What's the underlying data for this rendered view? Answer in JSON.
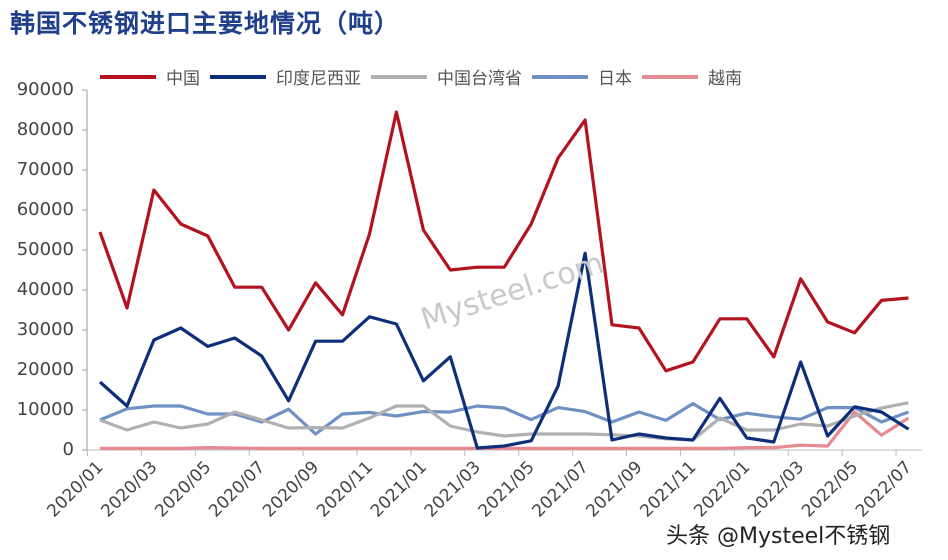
{
  "header": {
    "title": "韩国不锈钢进口主要地情况（吨）"
  },
  "watermark": {
    "text": "头条 @Mysteel不锈钢",
    "logo": "Mysteel.com"
  },
  "chart_data": {
    "type": "line",
    "title": "韩国不锈钢进口主要地情况（吨）",
    "xlabel": "",
    "ylabel": "",
    "ylim": [
      0,
      90000
    ],
    "yticks": [
      0,
      10000,
      20000,
      30000,
      40000,
      50000,
      60000,
      70000,
      80000,
      90000
    ],
    "grid": false,
    "legend_position": "top",
    "x": [
      "2020/01",
      "2020/02",
      "2020/03",
      "2020/04",
      "2020/05",
      "2020/06",
      "2020/07",
      "2020/08",
      "2020/09",
      "2020/10",
      "2020/11",
      "2020/12",
      "2021/01",
      "2021/02",
      "2021/03",
      "2021/04",
      "2021/05",
      "2021/06",
      "2021/07",
      "2021/08",
      "2021/09",
      "2021/10",
      "2021/11",
      "2021/12",
      "2022/01",
      "2022/02",
      "2022/03",
      "2022/04",
      "2022/05",
      "2022/06",
      "2022/07"
    ],
    "x_tick_labels": [
      "2020/01",
      "2020/03",
      "2020/05",
      "2020/07",
      "2020/09",
      "2020/11",
      "2021/01",
      "2021/03",
      "2021/05",
      "2021/07",
      "2021/09",
      "2021/11",
      "2022/01",
      "2022/03",
      "2022/05",
      "2022/07"
    ],
    "series": [
      {
        "name": "中国",
        "color": "#b3121f",
        "values": [
          54500,
          35500,
          65000,
          56500,
          53500,
          40700,
          40700,
          30000,
          41800,
          33800,
          54000,
          84500,
          55000,
          45000,
          45700,
          45700,
          56500,
          73000,
          82500,
          31300,
          30500,
          19800,
          22000,
          32800,
          32800,
          23300,
          42800,
          32000,
          29300,
          37400,
          38000
        ]
      },
      {
        "name": "印度尼西亚",
        "color": "#0d2f7a",
        "values": [
          17000,
          11000,
          27500,
          30500,
          25900,
          28000,
          23500,
          12300,
          27200,
          27200,
          33300,
          31500,
          17300,
          23300,
          500,
          1000,
          2300,
          16000,
          49200,
          2500,
          4000,
          3000,
          2500,
          12900,
          3000,
          2000,
          22000,
          3500,
          10800,
          9500,
          5200
        ]
      },
      {
        "name": "中国台湾省",
        "color": "#b0b0b0",
        "values": [
          7500,
          5000,
          7000,
          5500,
          6500,
          9500,
          7500,
          5500,
          5600,
          5500,
          8000,
          11000,
          11000,
          6000,
          4500,
          3500,
          4000,
          4000,
          4000,
          3800,
          3500,
          2800,
          2500,
          8000,
          5000,
          5000,
          6500,
          6000,
          8500,
          10500,
          11800
        ]
      },
      {
        "name": "日本",
        "color": "#6e90c2",
        "values": [
          7500,
          10300,
          11000,
          11000,
          9000,
          9000,
          7000,
          10200,
          4000,
          9000,
          9400,
          8500,
          9600,
          9500,
          11000,
          10500,
          7600,
          10600,
          9600,
          7000,
          9500,
          7400,
          11600,
          7600,
          9200,
          8300,
          7700,
          10600,
          10600,
          7000,
          9500
        ]
      },
      {
        "name": "越南",
        "color": "#e58a90",
        "values": [
          400,
          400,
          400,
          400,
          600,
          500,
          400,
          400,
          400,
          400,
          400,
          400,
          400,
          400,
          400,
          400,
          400,
          400,
          400,
          400,
          400,
          400,
          400,
          400,
          600,
          600,
          1200,
          1000,
          9500,
          3700,
          8000
        ]
      }
    ]
  }
}
